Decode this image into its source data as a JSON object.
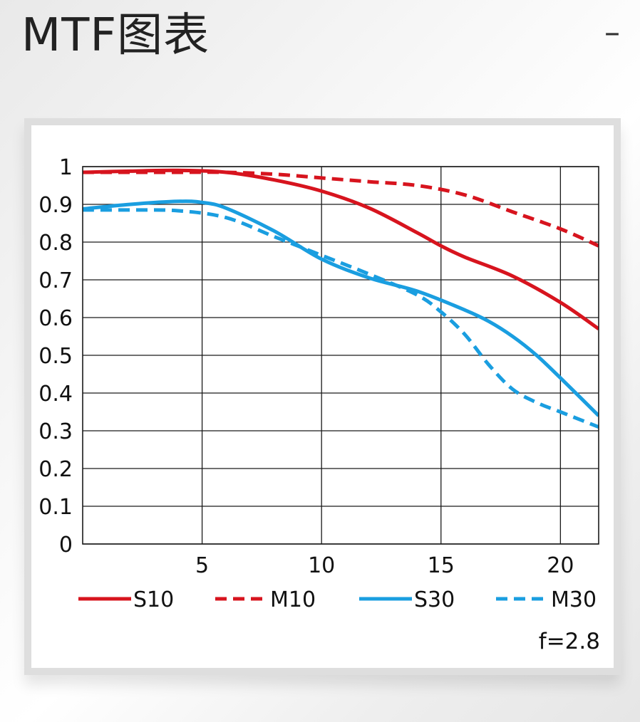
{
  "header": {
    "title": "MTF图表",
    "collapse_symbol": "–",
    "collapse_icon": "minus-icon"
  },
  "chart_data": {
    "type": "line",
    "xlim": [
      0,
      21.6
    ],
    "ylim": [
      0,
      1
    ],
    "x_ticks": [
      5,
      10,
      15,
      20
    ],
    "y_ticks": [
      0,
      0.1,
      0.2,
      0.3,
      0.4,
      0.5,
      0.6,
      0.7,
      0.8,
      0.9,
      1
    ],
    "y_tick_labels": [
      "0",
      "0.1",
      "0.2",
      "0.3",
      "0.4",
      "0.5",
      "0.6",
      "0.7",
      "0.8",
      "0.9",
      "1"
    ],
    "x_tick_labels": [
      "5",
      "10",
      "15",
      "20"
    ],
    "grid": true,
    "legend_position": "bottom",
    "annotation": "f=2.8",
    "series": [
      {
        "name": "S10",
        "color": "#d7141e",
        "dash": false,
        "x": [
          0,
          2,
          4,
          6,
          8,
          10,
          12,
          14,
          15,
          16,
          18,
          20,
          21.6
        ],
        "y": [
          0.985,
          0.988,
          0.99,
          0.985,
          0.965,
          0.935,
          0.89,
          0.825,
          0.79,
          0.76,
          0.71,
          0.64,
          0.57
        ]
      },
      {
        "name": "M10",
        "color": "#d7141e",
        "dash": true,
        "x": [
          0,
          2,
          4,
          6,
          8,
          10,
          12,
          14,
          16,
          18,
          20,
          21.6
        ],
        "y": [
          0.985,
          0.985,
          0.985,
          0.985,
          0.98,
          0.97,
          0.96,
          0.95,
          0.925,
          0.88,
          0.835,
          0.79
        ]
      },
      {
        "name": "S30",
        "color": "#1a9ee0",
        "dash": false,
        "x": [
          0,
          2,
          4,
          5,
          6,
          8,
          10,
          12,
          14,
          16,
          17,
          18,
          19,
          20,
          21.6
        ],
        "y": [
          0.888,
          0.9,
          0.908,
          0.905,
          0.89,
          0.83,
          0.755,
          0.705,
          0.67,
          0.62,
          0.59,
          0.55,
          0.5,
          0.44,
          0.34
        ]
      },
      {
        "name": "M30",
        "color": "#1a9ee0",
        "dash": true,
        "x": [
          0,
          2,
          4,
          6,
          8,
          10,
          12,
          14,
          15,
          16,
          17,
          18,
          19,
          20,
          21.6
        ],
        "y": [
          0.885,
          0.885,
          0.883,
          0.865,
          0.815,
          0.765,
          0.715,
          0.66,
          0.615,
          0.555,
          0.475,
          0.41,
          0.375,
          0.35,
          0.31
        ]
      }
    ]
  }
}
